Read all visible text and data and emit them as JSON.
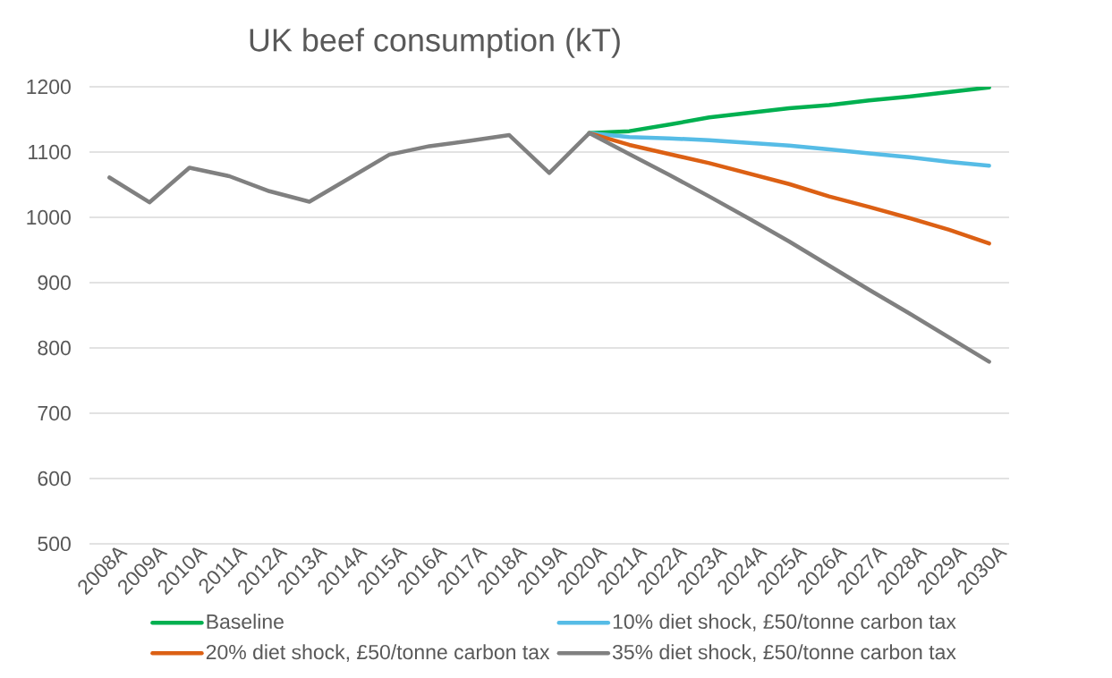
{
  "chart_data": {
    "type": "line",
    "title": "UK beef consumption (kT)",
    "categories": [
      "2008A",
      "2009A",
      "2010A",
      "2011A",
      "2012A",
      "2013A",
      "2014A",
      "2015A",
      "2016A",
      "2017A",
      "2018A",
      "2019A",
      "2020A",
      "2021A",
      "2022A",
      "2023A",
      "2024A",
      "2025A",
      "2026A",
      "2027A",
      "2028A",
      "2029A",
      "2030A"
    ],
    "series": [
      {
        "name": "Baseline",
        "color": "#00b050",
        "values": [
          null,
          null,
          null,
          null,
          null,
          null,
          null,
          null,
          null,
          null,
          null,
          null,
          1129,
          1132,
          1142,
          1153,
          1160,
          1167,
          1172,
          1179,
          1185,
          1192,
          1199
        ]
      },
      {
        "name": "10% diet shock, £50/tonne carbon tax",
        "color": "#56bce6",
        "values": [
          null,
          null,
          null,
          null,
          null,
          null,
          null,
          null,
          null,
          null,
          null,
          null,
          1129,
          1123,
          1121,
          1118,
          1114,
          1110,
          1104,
          1098,
          1092,
          1085,
          1079
        ]
      },
      {
        "name": "20% diet shock, £50/tonne carbon tax",
        "color": "#dc6014",
        "values": [
          null,
          null,
          null,
          null,
          null,
          null,
          null,
          null,
          null,
          null,
          null,
          null,
          1129,
          1111,
          1097,
          1083,
          1067,
          1051,
          1032,
          1016,
          999,
          981,
          960
        ]
      },
      {
        "name": "35% diet shock, £50/tonne carbon tax",
        "color": "#808080",
        "values": [
          1061,
          1023,
          1076,
          1063,
          1040,
          1024,
          1060,
          1096,
          1109,
          1117,
          1126,
          1068,
          1129,
          1097,
          1065,
          1032,
          998,
          963,
          926,
          889,
          853,
          816,
          779
        ]
      }
    ],
    "ylim": [
      500,
      1200
    ],
    "yticks": [
      500,
      600,
      700,
      800,
      900,
      1000,
      1100,
      1200
    ],
    "grid": "y",
    "legend": "bottom"
  }
}
